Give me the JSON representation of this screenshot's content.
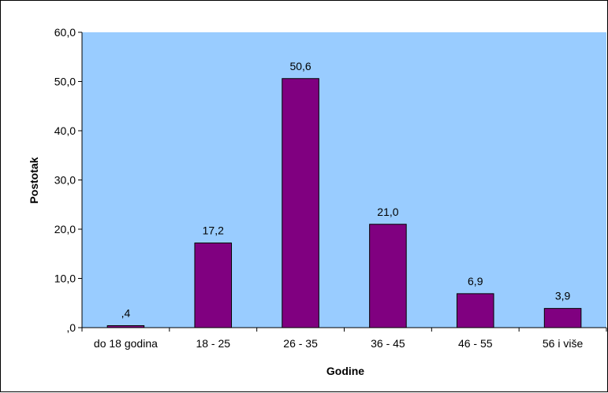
{
  "chart_data": {
    "type": "bar",
    "categories": [
      "do 18 godina",
      "18 - 25",
      "26 - 35",
      "36 - 45",
      "46 - 55",
      "56 i više"
    ],
    "values": [
      0.4,
      17.2,
      50.6,
      21.0,
      6.9,
      3.9
    ],
    "data_labels": [
      ",4",
      "17,2",
      "50,6",
      "21,0",
      "6,9",
      "3,9"
    ],
    "xlabel": "Godine",
    "ylabel": "Postotak",
    "ylim": [
      0,
      60
    ],
    "yticks": [
      0,
      10,
      20,
      30,
      40,
      50,
      60
    ],
    "ytick_labels": [
      ",0",
      "10,0",
      "20,0",
      "30,0",
      "40,0",
      "50,0",
      "60,0"
    ],
    "grid": false,
    "legend": "none",
    "colors": {
      "plot_background": "#99ccff",
      "bar_fill": "#800080",
      "bar_stroke": "#000000"
    }
  }
}
